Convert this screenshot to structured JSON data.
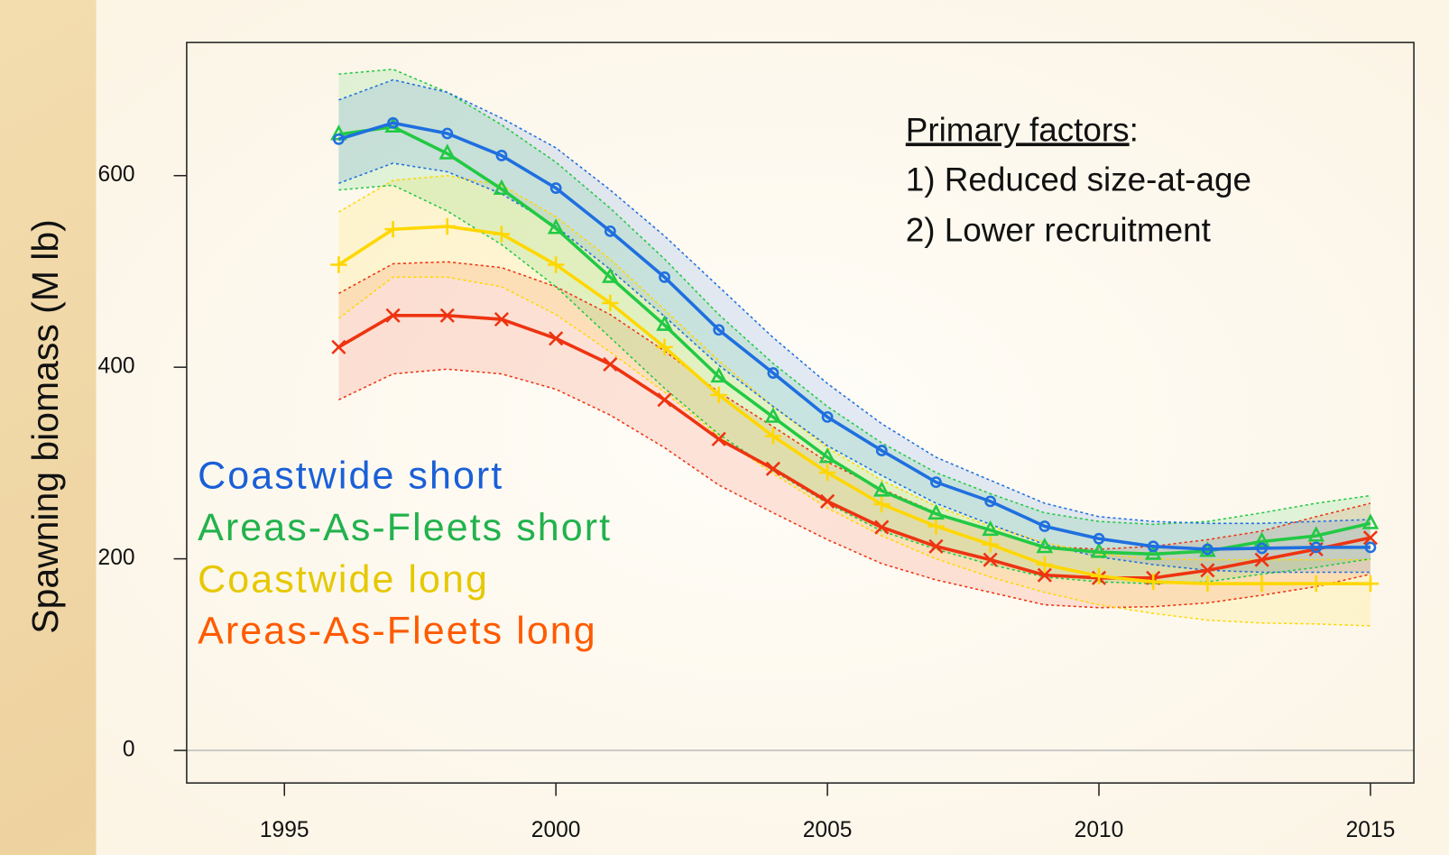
{
  "chart_data": {
    "type": "line",
    "ylabel": "Spawning biomass (M lb)",
    "x": [
      1996,
      1997,
      1998,
      1999,
      2000,
      2001,
      2002,
      2003,
      2004,
      2005,
      2006,
      2007,
      2008,
      2009,
      2010,
      2011,
      2012,
      2013,
      2014,
      2015
    ],
    "xlim": [
      1993.2,
      2015.8
    ],
    "xticks": [
      1995,
      2000,
      2005,
      2010,
      2015
    ],
    "ylim": [
      -34,
      739
    ],
    "yticks": [
      0,
      200,
      400,
      600
    ],
    "annotation": {
      "heading": [
        "Primary factors",
        ":"
      ],
      "lines": [
        "1) Reduced size-at-age",
        "2) Lower recruitment"
      ]
    },
    "series": [
      {
        "name": "Coastwide short",
        "color": "#1f6fe0",
        "label_color": "#1a5fd8",
        "marker": "circle",
        "values": [
          638,
          655,
          644,
          621,
          587,
          542,
          494,
          439,
          394,
          348,
          313,
          280,
          260,
          234,
          221,
          213,
          210,
          211,
          212,
          212
        ],
        "upper": [
          679,
          700,
          687,
          660,
          629,
          585,
          537,
          484,
          431,
          383,
          341,
          306,
          282,
          258,
          244,
          239,
          237,
          237,
          239,
          241
        ],
        "lower": [
          592,
          613,
          604,
          581,
          547,
          502,
          453,
          402,
          359,
          318,
          287,
          258,
          236,
          215,
          202,
          194,
          188,
          186,
          186,
          186
        ]
      },
      {
        "name": "Areas-As-Fleets short",
        "color": "#22c944",
        "label_color": "#22b24c",
        "marker": "triangle",
        "values": [
          643,
          651,
          623,
          586,
          545,
          494,
          444,
          390,
          348,
          306,
          271,
          247,
          230,
          212,
          207,
          205,
          208,
          218,
          224,
          237
        ],
        "upper": [
          706,
          711,
          687,
          653,
          614,
          566,
          513,
          455,
          404,
          359,
          321,
          290,
          268,
          248,
          239,
          236,
          239,
          248,
          258,
          266
        ],
        "lower": [
          585,
          590,
          563,
          528,
          484,
          431,
          378,
          330,
          292,
          258,
          229,
          210,
          194,
          181,
          176,
          174,
          176,
          184,
          191,
          200
        ]
      },
      {
        "name": "Coastwide long",
        "color": "#ffd700",
        "label_color": "#e6c800",
        "marker": "plus",
        "values": [
          507,
          544,
          547,
          539,
          507,
          467,
          421,
          371,
          328,
          290,
          257,
          234,
          215,
          194,
          182,
          176,
          174,
          174,
          174,
          174
        ],
        "upper": [
          562,
          595,
          600,
          590,
          557,
          513,
          460,
          407,
          359,
          316,
          282,
          255,
          234,
          217,
          205,
          200,
          199,
          199,
          199,
          199
        ],
        "lower": [
          451,
          494,
          494,
          484,
          455,
          416,
          374,
          328,
          289,
          253,
          224,
          200,
          181,
          165,
          152,
          143,
          136,
          133,
          132,
          130
        ]
      },
      {
        "name": "Areas-As-Fleets long",
        "color": "#ee3311",
        "label_color": "#ff5a00",
        "marker": "cross",
        "values": [
          421,
          454,
          454,
          450,
          430,
          403,
          366,
          325,
          294,
          260,
          233,
          213,
          199,
          183,
          180,
          180,
          188,
          199,
          210,
          222
        ],
        "upper": [
          477,
          508,
          510,
          504,
          484,
          455,
          417,
          374,
          338,
          301,
          273,
          248,
          229,
          213,
          210,
          213,
          220,
          229,
          244,
          258
        ],
        "lower": [
          366,
          393,
          398,
          393,
          377,
          350,
          316,
          277,
          248,
          220,
          195,
          178,
          165,
          152,
          149,
          150,
          154,
          162,
          171,
          184
        ]
      }
    ]
  }
}
